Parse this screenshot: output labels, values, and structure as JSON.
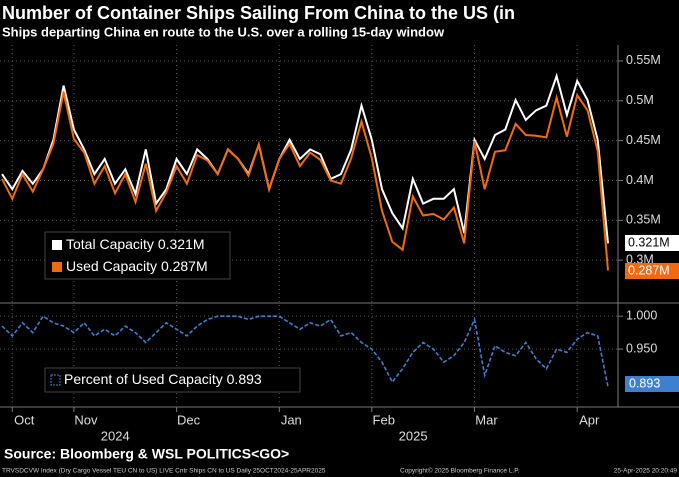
{
  "title": "Number of Container Ships Sailing From China to the US (in",
  "subtitle": "Ships departing China en route to the U.S. over a rolling 15-day window",
  "source": "Source: Bloomberg & WSL POLITICS<GO>",
  "footer": {
    "left": "TRVSDCVW Index (Dry Cargo Vessel TEU CN to US) LIVE Cntr Ships CN to US  Daily 25OCT2024-25APR2025",
    "center": "Copyright© 2025 Bloomberg Finance L.P.",
    "right": "25-Apr-2025 20:20:49"
  },
  "chart_data": [
    {
      "type": "line",
      "categories": [
        null,
        "Oct",
        null,
        null,
        null,
        null,
        null,
        "Nov",
        null,
        null,
        null,
        null,
        null,
        null,
        null,
        null,
        null,
        "Dec",
        null,
        null,
        null,
        null,
        null,
        null,
        null,
        null,
        null,
        "Jan",
        null,
        null,
        null,
        null,
        null,
        null,
        null,
        null,
        "Feb",
        null,
        null,
        null,
        null,
        null,
        null,
        null,
        null,
        null,
        "Mar",
        null,
        null,
        null,
        null,
        null,
        null,
        null,
        null,
        null,
        "Apr",
        null,
        null,
        null
      ],
      "years": [
        "2024",
        "2025"
      ],
      "series": [
        {
          "name": "Total Capacity",
          "color": "#ffffff",
          "last_label": "0.321M",
          "values": [
            0.408,
            0.389,
            0.412,
            0.396,
            0.414,
            0.451,
            0.519,
            0.464,
            0.439,
            0.408,
            0.427,
            0.396,
            0.414,
            0.383,
            0.439,
            0.371,
            0.389,
            0.427,
            0.408,
            0.439,
            0.427,
            0.408,
            0.439,
            0.427,
            0.408,
            0.445,
            0.389,
            0.427,
            0.451,
            0.427,
            0.439,
            0.433,
            0.402,
            0.408,
            0.439,
            0.494,
            0.451,
            0.389,
            0.359,
            0.34,
            0.402,
            0.371,
            0.377,
            0.377,
            0.389,
            0.334,
            0.451,
            0.427,
            0.457,
            0.464,
            0.501,
            0.476,
            0.488,
            0.494,
            0.531,
            0.482,
            0.525,
            0.501,
            0.451,
            0.321
          ]
        },
        {
          "name": "Used Capacity",
          "color": "#f26a10",
          "last_label": "0.287M",
          "values": [
            0.402,
            0.377,
            0.408,
            0.386,
            0.414,
            0.446,
            0.511,
            0.452,
            0.435,
            0.396,
            0.418,
            0.384,
            0.408,
            0.373,
            0.421,
            0.362,
            0.385,
            0.418,
            0.396,
            0.432,
            0.425,
            0.408,
            0.439,
            0.427,
            0.406,
            0.445,
            0.389,
            0.427,
            0.446,
            0.418,
            0.435,
            0.426,
            0.4,
            0.396,
            0.428,
            0.474,
            0.428,
            0.362,
            0.323,
            0.313,
            0.38,
            0.356,
            0.358,
            0.351,
            0.366,
            0.321,
            0.449,
            0.389,
            0.436,
            0.438,
            0.471,
            0.457,
            0.456,
            0.454,
            0.504,
            0.455,
            0.507,
            0.488,
            0.437,
            0.287
          ]
        }
      ],
      "ylim": [
        0.25,
        0.57
      ],
      "yticks": [
        {
          "value": 0.3,
          "label": "0.3M"
        },
        {
          "value": 0.35,
          "label": "0.35M"
        },
        {
          "value": 0.4,
          "label": "0.4M"
        },
        {
          "value": 0.45,
          "label": "0.45M"
        },
        {
          "value": 0.5,
          "label": "0.5M"
        },
        {
          "value": 0.55,
          "label": "0.55M"
        }
      ],
      "grid": true
    },
    {
      "type": "line",
      "series": [
        {
          "name": "Percent of Used Capacity",
          "color": "#3f7fd0",
          "values": [
            0.985,
            0.97,
            0.99,
            0.975,
            1.0,
            0.99,
            0.985,
            0.975,
            0.99,
            0.97,
            0.98,
            0.97,
            0.985,
            0.975,
            0.96,
            0.975,
            0.99,
            0.98,
            0.97,
            0.985,
            0.995,
            1.0,
            1.0,
            1.0,
            0.995,
            1.0,
            1.0,
            1.0,
            0.99,
            0.98,
            0.99,
            0.985,
            0.995,
            0.97,
            0.975,
            0.96,
            0.95,
            0.93,
            0.9,
            0.92,
            0.945,
            0.96,
            0.95,
            0.93,
            0.94,
            0.96,
            0.995,
            0.91,
            0.955,
            0.945,
            0.94,
            0.96,
            0.935,
            0.92,
            0.95,
            0.945,
            0.965,
            0.975,
            0.97,
            0.893
          ]
        }
      ],
      "ylim": [
        0.865,
        1.017
      ],
      "yticks": [
        {
          "value": 0.95,
          "label": "0.950"
        },
        {
          "value": 1.0,
          "label": "1.000"
        }
      ],
      "grid": true
    }
  ]
}
